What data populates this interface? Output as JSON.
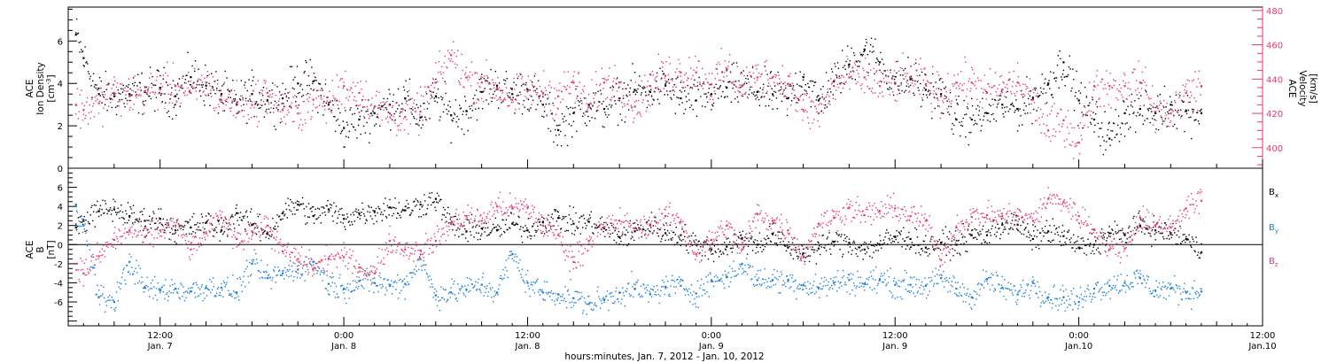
{
  "colors": {
    "density": "#000000",
    "velocity": "#e8396a",
    "bx": "#000000",
    "by": "#1a7fdb",
    "bz": "#e8396a",
    "axis": "#000000"
  },
  "x_axis": {
    "title": "hours:minutes, Jan.  7, 2012 - Jan. 10, 2012",
    "ticks": [
      {
        "time": "12:00",
        "date": "Jan. 7",
        "hour": 12
      },
      {
        "time": "0:00",
        "date": "Jan. 8",
        "hour": 24
      },
      {
        "time": "12:00",
        "date": "Jan. 8",
        "hour": 36
      },
      {
        "time": "0:00",
        "date": "Jan. 9",
        "hour": 48
      },
      {
        "time": "12:00",
        "date": "Jan. 9",
        "hour": 60
      },
      {
        "time": "0:00",
        "date": "Jan.10",
        "hour": 72
      },
      {
        "time": "12:00",
        "date": "Jan.10",
        "hour": 84
      }
    ]
  },
  "chart_data": [
    {
      "type": "scatter",
      "panel": "top",
      "ylabel": [
        "ACE",
        "Ion Density",
        "[cm",
        "-3",
        "]"
      ],
      "y2label": [
        "ACE",
        "Velocity",
        "[km/s]"
      ],
      "xlim": [
        6,
        84
      ],
      "ylim": [
        0,
        7.6
      ],
      "yticks": [
        0,
        2,
        4,
        6
      ],
      "y2lim": [
        388,
        482
      ],
      "y2ticks": [
        400,
        420,
        440,
        460,
        480
      ],
      "grid": false,
      "series": [
        {
          "axis": "left",
          "color": "#000000",
          "x": [
            6.5,
            7,
            8,
            9,
            10,
            11,
            12,
            13,
            14,
            15,
            16,
            17,
            18,
            19,
            20,
            21,
            22,
            23,
            24,
            25,
            26,
            27,
            28,
            29,
            30,
            31,
            32,
            33,
            34,
            35,
            36,
            37,
            38,
            39,
            40,
            41,
            42,
            43,
            44,
            45,
            46,
            47,
            48,
            49,
            50,
            51,
            52,
            53,
            54,
            55,
            56,
            57,
            58,
            59,
            60,
            61,
            62,
            63,
            64,
            65,
            66,
            67,
            68,
            69,
            70,
            71,
            72,
            73,
            74,
            75,
            76,
            77,
            78,
            79,
            80
          ],
          "values": [
            6.3,
            5.2,
            3.5,
            3.4,
            3.5,
            3.6,
            3.8,
            3.4,
            4.3,
            3.9,
            3.5,
            3.0,
            3.5,
            3.2,
            3.3,
            4.0,
            4.1,
            3.0,
            1.9,
            2.3,
            2.6,
            3.0,
            3.3,
            2.4,
            3.4,
            2.5,
            2.7,
            3.6,
            3.9,
            3.5,
            3.7,
            3.0,
            1.8,
            2.6,
            3.0,
            2.8,
            3.3,
            3.7,
            3.6,
            3.9,
            3.3,
            3.2,
            3.5,
            3.8,
            3.9,
            3.6,
            3.5,
            3.3,
            4.3,
            3.2,
            4.1,
            4.9,
            5.6,
            5.0,
            4.0,
            4.2,
            3.7,
            3.5,
            2.3,
            2.3,
            2.6,
            3.0,
            2.8,
            3.3,
            4.0,
            5.0,
            3.2,
            2.3,
            1.4,
            2.6,
            2.8,
            2.6,
            3.0,
            2.7,
            2.6
          ]
        },
        {
          "axis": "right",
          "color": "#e8396a",
          "x": [
            6.5,
            7,
            8,
            9,
            10,
            11,
            12,
            13,
            14,
            15,
            16,
            17,
            18,
            19,
            20,
            21,
            22,
            23,
            24,
            25,
            26,
            27,
            28,
            29,
            30,
            31,
            32,
            33,
            34,
            35,
            36,
            37,
            38,
            39,
            40,
            41,
            42,
            43,
            44,
            45,
            46,
            47,
            48,
            49,
            50,
            51,
            52,
            53,
            54,
            55,
            56,
            57,
            58,
            59,
            60,
            61,
            62,
            63,
            64,
            65,
            66,
            67,
            68,
            69,
            70,
            71,
            72,
            73,
            74,
            75,
            76,
            77,
            78,
            79,
            80
          ],
          "values": [
            425,
            422,
            426,
            432,
            430,
            433,
            434,
            436,
            432,
            438,
            428,
            426,
            425,
            432,
            422,
            420,
            428,
            426,
            436,
            432,
            424,
            420,
            418,
            421,
            438,
            454,
            441,
            438,
            435,
            428,
            433,
            432,
            430,
            438,
            424,
            438,
            438,
            424,
            436,
            442,
            444,
            444,
            437,
            446,
            436,
            441,
            441,
            437,
            422,
            420,
            436,
            441,
            441,
            436,
            438,
            441,
            437,
            430,
            438,
            438,
            432,
            434,
            438,
            428,
            410,
            416,
            403,
            436,
            436,
            436,
            438,
            421,
            420,
            432,
            436
          ]
        }
      ]
    },
    {
      "type": "scatter",
      "panel": "bottom",
      "ylabel": [
        "ACE",
        "B",
        "[nT]"
      ],
      "xlim": [
        6,
        84
      ],
      "ylim": [
        -8.5,
        8
      ],
      "yticks": [
        -6,
        -4,
        -2,
        0,
        2,
        4,
        6
      ],
      "grid": false,
      "zero_line": true,
      "legend_position": "right",
      "series": [
        {
          "name": "B",
          "sub": "x",
          "color": "#000000",
          "x": [
            6.5,
            7,
            8,
            9,
            10,
            11,
            12,
            13,
            14,
            15,
            16,
            17,
            18,
            19,
            20,
            21,
            22,
            23,
            24,
            25,
            26,
            27,
            28,
            29,
            30,
            31,
            32,
            33,
            34,
            35,
            36,
            37,
            38,
            39,
            40,
            41,
            42,
            43,
            44,
            45,
            46,
            47,
            48,
            49,
            50,
            51,
            52,
            53,
            54,
            55,
            56,
            57,
            58,
            59,
            60,
            61,
            62,
            63,
            64,
            65,
            66,
            67,
            68,
            69,
            70,
            71,
            72,
            73,
            74,
            75,
            76,
            77,
            78,
            79,
            80
          ],
          "values": [
            1.8,
            2.5,
            3.5,
            3.7,
            3.0,
            2.5,
            2.7,
            1.5,
            1.8,
            2.3,
            1.5,
            3.3,
            2.1,
            1.2,
            3.3,
            4.2,
            3.0,
            3.7,
            2.7,
            3.3,
            3.5,
            3.9,
            3.6,
            4.2,
            4.8,
            2.2,
            1.4,
            1.7,
            1.5,
            2.2,
            1.5,
            2.4,
            2.8,
            2.2,
            2.4,
            1.7,
            0.8,
            1.4,
            2.1,
            1.2,
            1.0,
            0.0,
            -0.5,
            -0.2,
            0.7,
            0.0,
            1.1,
            -0.3,
            -0.9,
            -0.4,
            0.3,
            0.2,
            -0.5,
            0.0,
            0.8,
            0.6,
            -0.3,
            0.2,
            0.0,
            1.0,
            1.0,
            2.1,
            2.1,
            0.6,
            1.4,
            0.9,
            -0.3,
            0.0,
            1.2,
            1.0,
            2.0,
            1.5,
            1.2,
            0.6,
            -0.8
          ]
        },
        {
          "name": "B",
          "sub": "y",
          "color": "#1a7fdb",
          "x": [
            6.5,
            7,
            8,
            9,
            10,
            11,
            12,
            13,
            14,
            15,
            16,
            17,
            18,
            19,
            20,
            21,
            22,
            23,
            24,
            25,
            26,
            27,
            28,
            29,
            30,
            31,
            32,
            33,
            34,
            35,
            36,
            37,
            38,
            39,
            40,
            41,
            42,
            43,
            44,
            45,
            46,
            47,
            48,
            49,
            50,
            51,
            52,
            53,
            54,
            55,
            56,
            57,
            58,
            59,
            60,
            61,
            62,
            63,
            64,
            65,
            66,
            67,
            68,
            69,
            70,
            71,
            72,
            73,
            74,
            75,
            76,
            77,
            78,
            79,
            80
          ],
          "values": [
            4.2,
            2.0,
            -5.5,
            -6.0,
            -1.8,
            -4.5,
            -4.8,
            -4.6,
            -4.9,
            -4.5,
            -4.5,
            -5.0,
            -2.0,
            -3.5,
            -3.0,
            -2.6,
            -1.8,
            -4.1,
            -4.6,
            -3.8,
            -4.0,
            -4.3,
            -4.1,
            -1.5,
            -5.3,
            -5.0,
            -4.7,
            -4.2,
            -5.0,
            -1.0,
            -4.0,
            -5.0,
            -5.2,
            -5.6,
            -6.2,
            -5.8,
            -5.0,
            -4.6,
            -5.2,
            -4.4,
            -4.3,
            -5.1,
            -3.8,
            -3.4,
            -2.0,
            -3.7,
            -3.7,
            -3.8,
            -4.2,
            -4.5,
            -4.0,
            -3.7,
            -4.1,
            -3.6,
            -4.2,
            -4.2,
            -4.3,
            -3.5,
            -4.6,
            -5.5,
            -3.6,
            -4.5,
            -5.2,
            -4.0,
            -5.5,
            -5.5,
            -6.0,
            -4.6,
            -4.3,
            -4.0,
            -3.5,
            -4.8,
            -4.6,
            -5.0,
            -4.9
          ]
        },
        {
          "name": "B",
          "sub": "z",
          "color": "#e8396a",
          "x": [
            6.5,
            7,
            8,
            9,
            10,
            11,
            12,
            13,
            14,
            15,
            16,
            17,
            18,
            19,
            20,
            21,
            22,
            23,
            24,
            25,
            26,
            27,
            28,
            29,
            30,
            31,
            32,
            33,
            34,
            35,
            36,
            37,
            38,
            39,
            40,
            41,
            42,
            43,
            44,
            45,
            46,
            47,
            48,
            49,
            50,
            51,
            52,
            53,
            54,
            55,
            56,
            57,
            58,
            59,
            60,
            61,
            62,
            63,
            64,
            65,
            66,
            67,
            68,
            69,
            70,
            71,
            72,
            73,
            74,
            75,
            76,
            77,
            78,
            79,
            80
          ],
          "values": [
            -2.0,
            -3.0,
            -1.2,
            0.5,
            1.5,
            0.8,
            1.5,
            2.0,
            -0.5,
            1.2,
            2.8,
            0.6,
            1.4,
            2.0,
            -0.7,
            -1.5,
            -2.5,
            -1.5,
            -1.3,
            -2.4,
            -3.0,
            0.4,
            -0.5,
            -0.6,
            0.4,
            2.2,
            3.0,
            2.5,
            4.0,
            3.8,
            3.9,
            2.0,
            1.0,
            -1.8,
            0.4,
            1.8,
            2.5,
            1.7,
            2.0,
            3.0,
            2.4,
            -1.0,
            0.5,
            2.0,
            -0.5,
            3.2,
            2.5,
            1.5,
            -1.2,
            2.2,
            2.8,
            3.9,
            3.1,
            3.5,
            3.8,
            3.0,
            2.5,
            -1.6,
            1.8,
            2.9,
            3.1,
            3.0,
            3.0,
            2.5,
            4.8,
            4.5,
            3.0,
            1.6,
            -0.5,
            -0.4,
            2.8,
            2.0,
            1.8,
            3.8,
            4.6
          ]
        }
      ]
    }
  ]
}
